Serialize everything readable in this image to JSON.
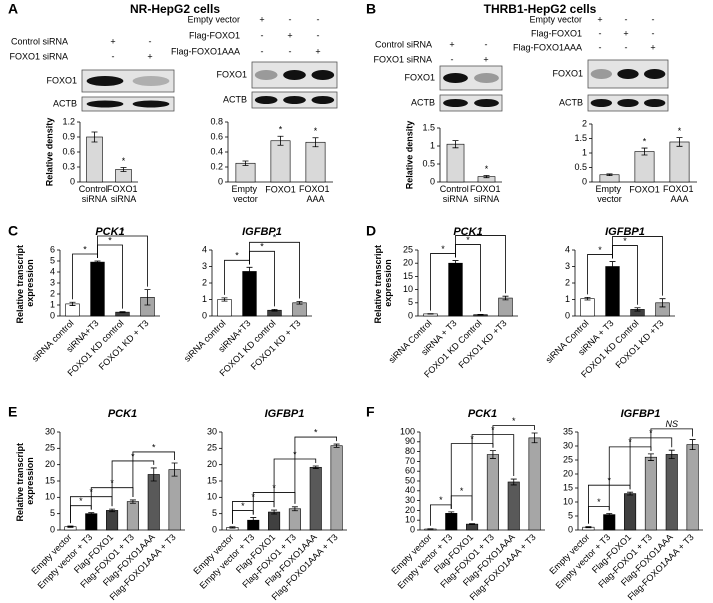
{
  "panels": [
    {
      "letter": "A",
      "title": "NR-HepG2 cells"
    },
    {
      "letter": "B",
      "title": "THRB1-HepG2 cells"
    },
    {
      "letter": "C"
    },
    {
      "letter": "D"
    },
    {
      "letter": "E"
    },
    {
      "letter": "F"
    }
  ],
  "blots": [
    {
      "conditions": [
        {
          "label": "Control siRNA",
          "signs": [
            "+",
            "-"
          ]
        },
        {
          "label": "FOXO1 siRNA",
          "signs": [
            "-",
            "+"
          ]
        }
      ],
      "rows": [
        "FOXO1",
        "ACTB"
      ]
    },
    {
      "conditions": [
        {
          "label": "Empty vector",
          "signs": [
            "+",
            "-",
            "-"
          ]
        },
        {
          "label": "Flag-FOXO1",
          "signs": [
            "-",
            "+",
            "-"
          ]
        },
        {
          "label": "Flag-FOXO1AAA",
          "signs": [
            "-",
            "-",
            "+"
          ]
        }
      ],
      "rows": [
        "FOXO1",
        "ACTB"
      ]
    },
    {
      "conditions": [
        {
          "label": "Control siRNA",
          "signs": [
            "+",
            "-"
          ]
        },
        {
          "label": "FOXO1 siRNA",
          "signs": [
            "-",
            "+"
          ]
        }
      ],
      "rows": [
        "FOXO1",
        "ACTB"
      ]
    },
    {
      "conditions": [
        {
          "label": "Empty vector",
          "signs": [
            "+",
            "-",
            "-"
          ]
        },
        {
          "label": "Flag-FOXO1",
          "signs": [
            "-",
            "+",
            "-"
          ]
        },
        {
          "label": "Flag-FOXO1AAA",
          "signs": [
            "-",
            "-",
            "+"
          ]
        }
      ],
      "rows": [
        "FOXO1",
        "ACTB"
      ]
    }
  ],
  "chart_data": [
    {
      "type": "bar",
      "ylabel": "Relative density",
      "categories": [
        "Control siRNA",
        "FOXO1 siRNA"
      ],
      "values": [
        0.9,
        0.25
      ],
      "errors": [
        0.1,
        0.04
      ],
      "colors": [
        "#d9d9d9",
        "#d9d9d9"
      ],
      "ylim": [
        0,
        1.2
      ],
      "yticks": [
        0,
        0.3,
        0.6,
        0.9,
        1.2
      ],
      "annotations": [
        {
          "at": 1,
          "label": "*"
        }
      ]
    },
    {
      "type": "bar",
      "categories": [
        "Empty vector",
        "FOXO1",
        "FOXO1 AAA"
      ],
      "values": [
        0.25,
        0.55,
        0.53
      ],
      "errors": [
        0.03,
        0.06,
        0.06
      ],
      "colors": [
        "#d9d9d9",
        "#d9d9d9",
        "#d9d9d9"
      ],
      "ylim": [
        0,
        0.8
      ],
      "yticks": [
        0,
        0.2,
        0.4,
        0.6,
        0.8
      ],
      "annotations": [
        {
          "at": 1,
          "label": "*"
        },
        {
          "at": 2,
          "label": "*"
        }
      ]
    },
    {
      "type": "bar",
      "ylabel": "Relative density",
      "categories": [
        "Control siRNA",
        "FOXO1 siRNA"
      ],
      "values": [
        1.05,
        0.15
      ],
      "errors": [
        0.1,
        0.03
      ],
      "colors": [
        "#d9d9d9",
        "#d9d9d9"
      ],
      "ylim": [
        0,
        1.5
      ],
      "yticks": [
        0,
        0.5,
        1,
        1.5
      ],
      "annotations": [
        {
          "at": 1,
          "label": "*"
        }
      ]
    },
    {
      "type": "bar",
      "categories": [
        "Empty vector",
        "FOXO1",
        "FOXO1 AAA"
      ],
      "values": [
        0.25,
        1.05,
        1.38
      ],
      "errors": [
        0.03,
        0.12,
        0.15
      ],
      "colors": [
        "#d9d9d9",
        "#d9d9d9",
        "#d9d9d9"
      ],
      "ylim": [
        0,
        2
      ],
      "yticks": [
        0,
        0.5,
        1,
        1.5,
        2
      ],
      "annotations": [
        {
          "at": 1,
          "label": "*"
        },
        {
          "at": 2,
          "label": "*"
        }
      ]
    },
    {
      "type": "bar",
      "title": "PCK1",
      "ylabel": "Relative transcript expression",
      "categories": [
        "siRNA control",
        "siRNA+T3",
        "FOXO1 KD control",
        "FOXO1 KD + T3"
      ],
      "values": [
        1.1,
        4.9,
        0.35,
        1.7
      ],
      "errors": [
        0.15,
        0.1,
        0.05,
        0.7
      ],
      "colors": [
        "#ffffff",
        "#000000",
        "#404040",
        "#a6a6a6"
      ],
      "ylim": [
        0,
        6
      ],
      "yticks": [
        0,
        1,
        2,
        3,
        4,
        5,
        6
      ],
      "annotations": [
        {
          "from": 0,
          "to": 1,
          "label": "*"
        },
        {
          "from": 1,
          "to": 2,
          "label": "*"
        },
        {
          "from": 1,
          "to": 3,
          "label": "*"
        }
      ]
    },
    {
      "type": "bar",
      "title": "IGFBP1",
      "categories": [
        "siRNA control",
        "siRNA+T3",
        "FOXO1 KD control",
        "FOXO1 KD + T3"
      ],
      "values": [
        1.0,
        2.7,
        0.35,
        0.8
      ],
      "errors": [
        0.1,
        0.25,
        0.05,
        0.08
      ],
      "colors": [
        "#ffffff",
        "#000000",
        "#404040",
        "#a6a6a6"
      ],
      "ylim": [
        0,
        4
      ],
      "yticks": [
        0,
        1,
        2,
        3,
        4
      ],
      "annotations": [
        {
          "from": 0,
          "to": 1,
          "label": "*"
        },
        {
          "from": 1,
          "to": 2,
          "label": "*"
        },
        {
          "from": 1,
          "to": 3,
          "label": "*"
        }
      ]
    },
    {
      "type": "bar",
      "title": "PCK1",
      "ylabel": "Relative transcript expression",
      "categories": [
        "siRNA Control",
        "siRNA + T3",
        "FOXO1 KD Control",
        "FOXO1 KD +T3"
      ],
      "values": [
        0.8,
        20,
        0.5,
        6.8
      ],
      "errors": [
        0.1,
        1,
        0.1,
        0.7
      ],
      "colors": [
        "#ffffff",
        "#000000",
        "#404040",
        "#a6a6a6"
      ],
      "ylim": [
        0,
        25
      ],
      "yticks": [
        0,
        5,
        10,
        15,
        20,
        25
      ],
      "annotations": [
        {
          "from": 0,
          "to": 1,
          "label": "*"
        },
        {
          "from": 1,
          "to": 2,
          "label": "*"
        },
        {
          "from": 1,
          "to": 3,
          "label": "*"
        }
      ]
    },
    {
      "type": "bar",
      "title": "IGFBP1",
      "categories": [
        "siRNA Control",
        "siRNA + T3",
        "FOXO1 KD Control",
        "FOXO1 KD +T3"
      ],
      "values": [
        1.05,
        3.0,
        0.4,
        0.8
      ],
      "errors": [
        0.08,
        0.3,
        0.1,
        0.25
      ],
      "colors": [
        "#ffffff",
        "#000000",
        "#404040",
        "#a6a6a6"
      ],
      "ylim": [
        0,
        4
      ],
      "yticks": [
        0,
        1,
        2,
        3,
        4
      ],
      "annotations": [
        {
          "from": 0,
          "to": 1,
          "label": "*"
        },
        {
          "from": 1,
          "to": 2,
          "label": "*"
        },
        {
          "from": 1,
          "to": 3,
          "label": "*"
        }
      ]
    },
    {
      "type": "bar",
      "title": "PCK1",
      "ylabel": "Relative transcript expression",
      "categories": [
        "Empty vector",
        "Empty vector + T3",
        "Flag-FOXO1",
        "Flag-FOXO1 + T3",
        "Flag-FOXO1AAA",
        "Flag-FOXO1AAA + T3"
      ],
      "values": [
        1,
        5,
        6,
        8.7,
        17,
        18.5
      ],
      "errors": [
        0.2,
        0.3,
        0.4,
        0.5,
        2,
        2
      ],
      "colors": [
        "#ffffff",
        "#000000",
        "#404040",
        "#a6a6a6",
        "#595959",
        "#a6a6a6"
      ],
      "ylim": [
        0,
        30
      ],
      "yticks": [
        0,
        5,
        10,
        15,
        20,
        25,
        30
      ],
      "annotations": [
        {
          "from": 0,
          "to": 1,
          "label": "*"
        },
        {
          "from": 0,
          "to": 2,
          "label": "*"
        },
        {
          "from": 1,
          "to": 3,
          "label": "*"
        },
        {
          "from": 2,
          "to": 4,
          "label": "*"
        },
        {
          "from": 3,
          "to": 5,
          "label": "*"
        }
      ]
    },
    {
      "type": "bar",
      "title": "IGFBP1",
      "categories": [
        "Empty vector",
        "Empty vector + T3",
        "Flag-FOXO1",
        "Flag-FOXO1 + T3",
        "Flag-FOXO1AAA",
        "Flag-FOXO1AAA + T3"
      ],
      "values": [
        0.8,
        3,
        5.5,
        6.5,
        19.2,
        25.8
      ],
      "errors": [
        0.2,
        0.8,
        0.6,
        0.6,
        0.4,
        0.5
      ],
      "colors": [
        "#ffffff",
        "#000000",
        "#404040",
        "#a6a6a6",
        "#595959",
        "#a6a6a6"
      ],
      "ylim": [
        0,
        30
      ],
      "yticks": [
        0,
        5,
        10,
        15,
        20,
        25,
        30
      ],
      "annotations": [
        {
          "from": 0,
          "to": 1,
          "label": "*"
        },
        {
          "from": 0,
          "to": 2,
          "label": "*"
        },
        {
          "from": 1,
          "to": 3,
          "label": "*"
        },
        {
          "from": 2,
          "to": 4,
          "label": "*"
        },
        {
          "from": 3,
          "to": 5,
          "label": "*"
        }
      ]
    },
    {
      "type": "bar",
      "title": "PCK1",
      "categories": [
        "Empty vector",
        "Empty vector + T3",
        "Flag-FOXO1",
        "Flag-FOXO1 + T3",
        "Flag-FOXO1AAA",
        "Flag-FOXO1AAA + T3"
      ],
      "values": [
        1,
        17,
        6,
        77,
        49,
        94
      ],
      "errors": [
        0.3,
        1.5,
        0.5,
        4,
        3,
        5
      ],
      "colors": [
        "#ffffff",
        "#000000",
        "#404040",
        "#a6a6a6",
        "#595959",
        "#a6a6a6"
      ],
      "ylim": [
        0,
        100
      ],
      "yticks": [
        0,
        10,
        20,
        30,
        40,
        50,
        60,
        70,
        80,
        90,
        100
      ],
      "annotations": [
        {
          "from": 0,
          "to": 1,
          "label": "*"
        },
        {
          "from": 1,
          "to": 2,
          "label": "*"
        },
        {
          "from": 1,
          "to": 3,
          "label": "*"
        },
        {
          "from": 2,
          "to": 4,
          "label": "*"
        },
        {
          "from": 3,
          "to": 5,
          "label": "*"
        }
      ]
    },
    {
      "type": "bar",
      "title": "IGFBP1",
      "categories": [
        "Empty vector",
        "Empty vector + T3",
        "Flag-FOXO1",
        "Flag-FOXO1 + T3",
        "Flag-FOXO1AAA",
        "Flag-FOXO1AAA + T3"
      ],
      "values": [
        1,
        5.5,
        13,
        26,
        27,
        30.5
      ],
      "errors": [
        0.2,
        0.4,
        0.5,
        1.2,
        1.5,
        1.8
      ],
      "colors": [
        "#ffffff",
        "#000000",
        "#404040",
        "#a6a6a6",
        "#595959",
        "#a6a6a6"
      ],
      "ylim": [
        0,
        35
      ],
      "yticks": [
        0,
        5,
        10,
        15,
        20,
        25,
        30,
        35
      ],
      "annotations": [
        {
          "from": 0,
          "to": 1,
          "label": "*"
        },
        {
          "from": 0,
          "to": 2,
          "label": "*"
        },
        {
          "from": 1,
          "to": 3,
          "label": "*"
        },
        {
          "from": 2,
          "to": 4,
          "label": "*"
        },
        {
          "from": 3,
          "to": 5,
          "label": "NS"
        }
      ]
    }
  ]
}
